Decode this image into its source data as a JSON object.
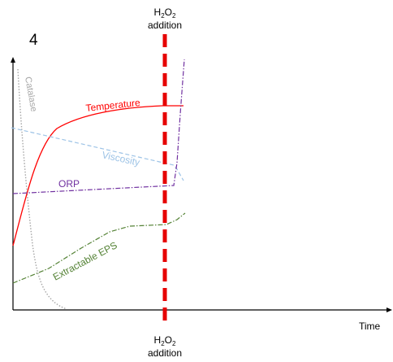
{
  "panel_number": "4",
  "event": {
    "top_formula_main": "H",
    "top_formula_sub": "2",
    "top_formula_mid": "O",
    "top_formula_sub2": "2",
    "top_word": "addition",
    "bottom_formula_main": "H",
    "bottom_formula_sub": "2",
    "bottom_formula_mid": "O",
    "bottom_formula_sub2": "2",
    "bottom_word": "addition"
  },
  "x_axis_label": "Time",
  "curves": {
    "catalase": "Catalase",
    "temperature": "Temperature",
    "viscosity": "Viscosity",
    "orp": "ORP",
    "eps": "Extractable EPS"
  },
  "colors": {
    "catalase": "#a6a6a6",
    "temperature": "#ff0000",
    "viscosity": "#9dc3e6",
    "orp": "#7030a0",
    "eps": "#548235",
    "event_line": "#e60000",
    "axis": "#000000"
  }
}
